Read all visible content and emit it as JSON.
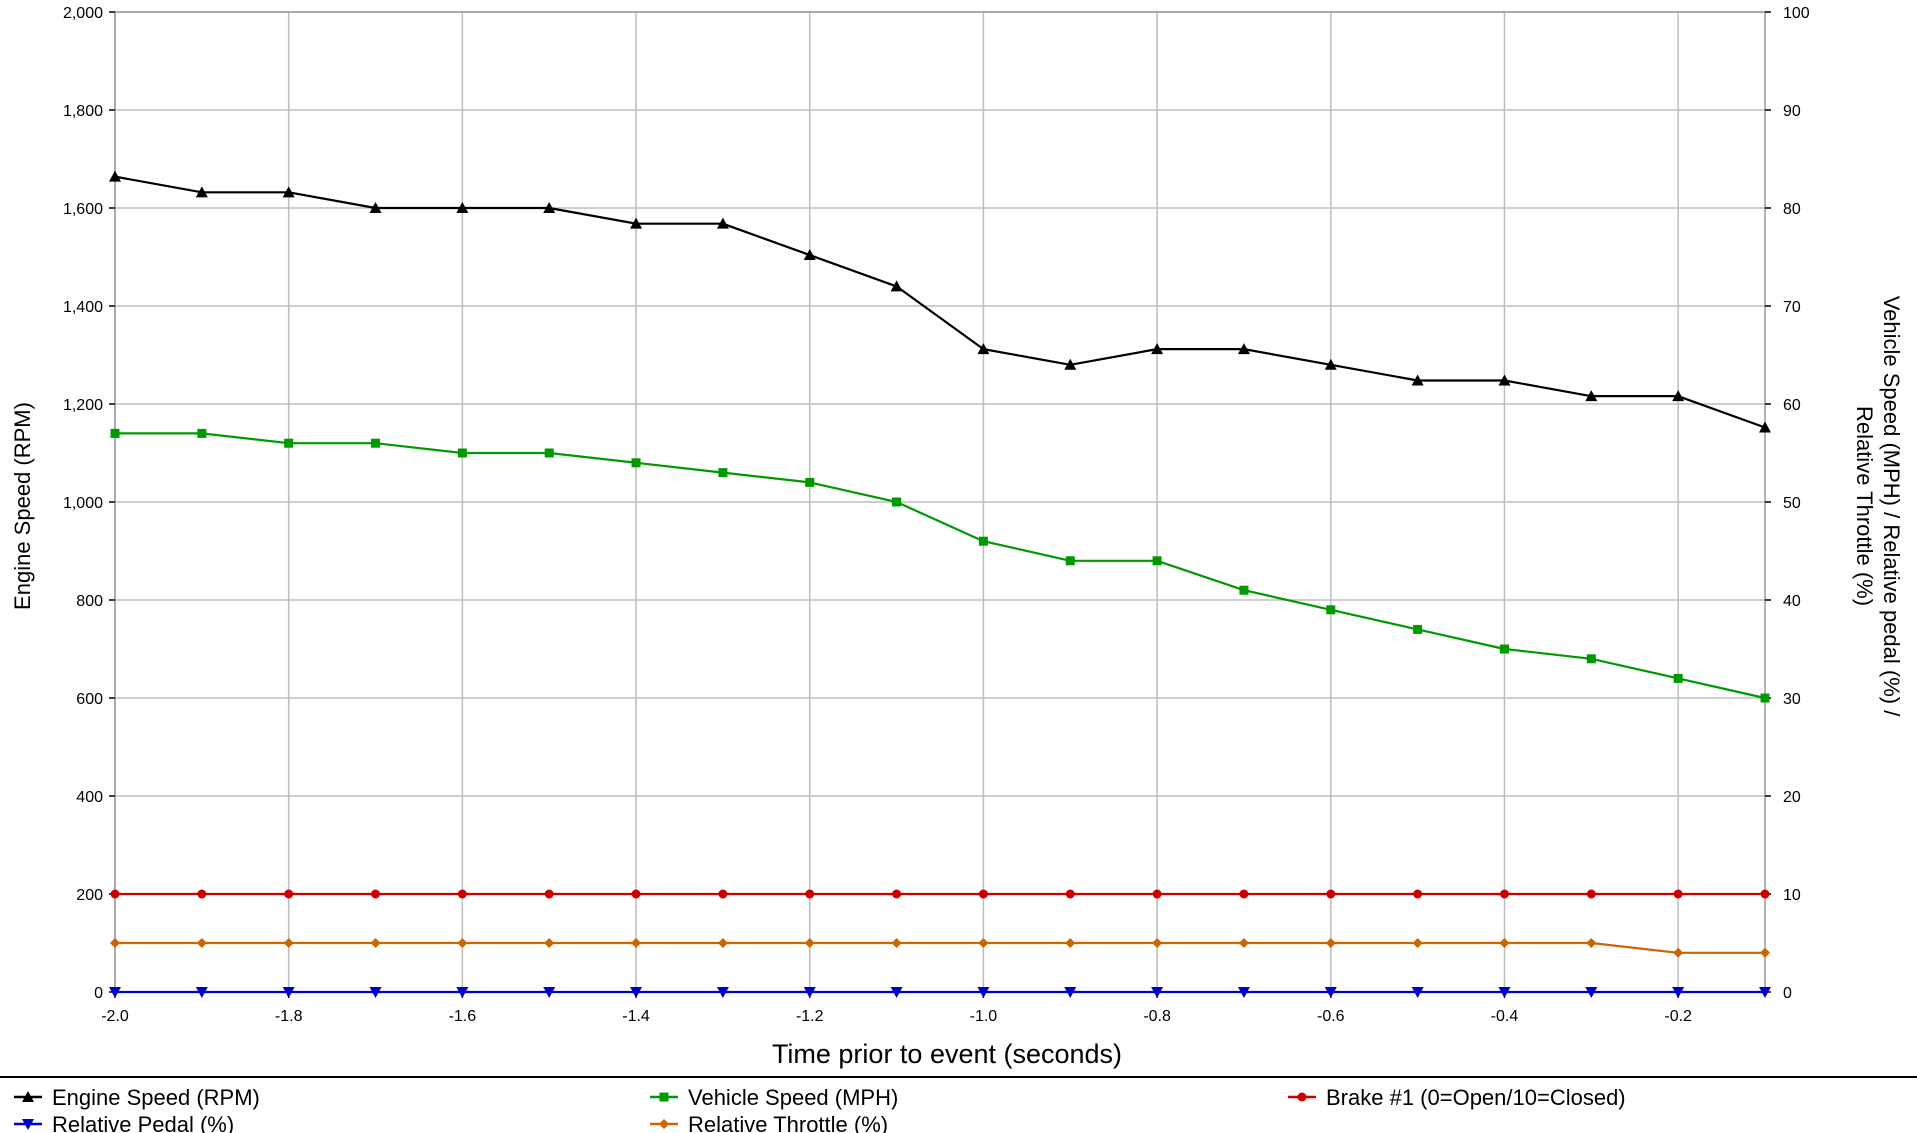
{
  "chart_data": {
    "type": "line",
    "xlabel": "Time prior to event (seconds)",
    "ylabel_left": "Engine Speed (RPM)",
    "ylabel_right_line1": "Vehicle Speed (MPH) / Relative pedal (%) /",
    "ylabel_right_line2": "Relative Throttle (%)",
    "xlim": [
      -2.0,
      -0.1
    ],
    "ylim_left": [
      0,
      2000
    ],
    "ylim_right": [
      0,
      100
    ],
    "grid": true,
    "legend_position": "bottom",
    "x_ticks": [
      {
        "value": -2.0,
        "label": "-2.0"
      },
      {
        "value": -1.8,
        "label": "-1.8"
      },
      {
        "value": -1.6,
        "label": "-1.6"
      },
      {
        "value": -1.4,
        "label": "-1.4"
      },
      {
        "value": -1.2,
        "label": "-1.2"
      },
      {
        "value": -1.0,
        "label": "-1.0"
      },
      {
        "value": -0.8,
        "label": "-0.8"
      },
      {
        "value": -0.6,
        "label": "-0.6"
      },
      {
        "value": -0.4,
        "label": "-0.4"
      },
      {
        "value": -0.2,
        "label": "-0.2"
      }
    ],
    "x_grid_values": [
      -2.0,
      -1.8,
      -1.6,
      -1.4,
      -1.2,
      -1.0,
      -0.8,
      -0.6,
      -0.4,
      -0.2
    ],
    "y_left_ticks": [
      {
        "value": 0,
        "label": "0"
      },
      {
        "value": 200,
        "label": "200"
      },
      {
        "value": 400,
        "label": "400"
      },
      {
        "value": 600,
        "label": "600"
      },
      {
        "value": 800,
        "label": "800"
      },
      {
        "value": 1000,
        "label": "1,000"
      },
      {
        "value": 1200,
        "label": "1,200"
      },
      {
        "value": 1400,
        "label": "1,400"
      },
      {
        "value": 1600,
        "label": "1,600"
      },
      {
        "value": 1800,
        "label": "1,800"
      },
      {
        "value": 2000,
        "label": "2,000"
      }
    ],
    "y_right_ticks": [
      {
        "value": 0,
        "label": "0"
      },
      {
        "value": 10,
        "label": "10"
      },
      {
        "value": 20,
        "label": "20"
      },
      {
        "value": 30,
        "label": "30"
      },
      {
        "value": 40,
        "label": "40"
      },
      {
        "value": 50,
        "label": "50"
      },
      {
        "value": 60,
        "label": "60"
      },
      {
        "value": 70,
        "label": "70"
      },
      {
        "value": 80,
        "label": "80"
      },
      {
        "value": 90,
        "label": "90"
      },
      {
        "value": 100,
        "label": "100"
      }
    ],
    "x": [
      -2.0,
      -1.9,
      -1.8,
      -1.7,
      -1.6,
      -1.5,
      -1.4,
      -1.3,
      -1.2,
      -1.1,
      -1.0,
      -0.9,
      -0.8,
      -0.7,
      -0.6,
      -0.5,
      -0.4,
      -0.3,
      -0.2,
      -0.1
    ],
    "series": [
      {
        "name": "Engine Speed (RPM)",
        "axis": "left",
        "color": "#000000",
        "marker": "triangle-up",
        "values": [
          1664,
          1632,
          1632,
          1600,
          1600,
          1600,
          1568,
          1568,
          1504,
          1440,
          1312,
          1280,
          1312,
          1312,
          1280,
          1248,
          1248,
          1216,
          1216,
          1152
        ]
      },
      {
        "name": "Vehicle Speed (MPH)",
        "axis": "right",
        "color": "#009900",
        "marker": "square",
        "values": [
          57,
          57,
          56,
          56,
          55,
          55,
          54,
          53,
          52,
          50,
          46,
          44,
          44,
          41,
          39,
          37,
          35,
          34,
          32,
          30
        ]
      },
      {
        "name": "Brake #1 (0=Open/10=Closed)",
        "axis": "right",
        "color": "#cc0000",
        "marker": "circle",
        "values": [
          10,
          10,
          10,
          10,
          10,
          10,
          10,
          10,
          10,
          10,
          10,
          10,
          10,
          10,
          10,
          10,
          10,
          10,
          10,
          10
        ]
      },
      {
        "name": "Relative Pedal (%)",
        "axis": "right",
        "color": "#0000cc",
        "marker": "triangle-down",
        "values": [
          0,
          0,
          0,
          0,
          0,
          0,
          0,
          0,
          0,
          0,
          0,
          0,
          0,
          0,
          0,
          0,
          0,
          0,
          0,
          0
        ]
      },
      {
        "name": "Relative Throttle (%)",
        "axis": "right",
        "color": "#cc6600",
        "marker": "diamond",
        "values": [
          5,
          5,
          5,
          5,
          5,
          5,
          5,
          5,
          5,
          5,
          5,
          5,
          5,
          5,
          5,
          5,
          5,
          5,
          4,
          4
        ]
      }
    ],
    "legend_order": [
      0,
      1,
      2,
      3,
      4
    ]
  }
}
